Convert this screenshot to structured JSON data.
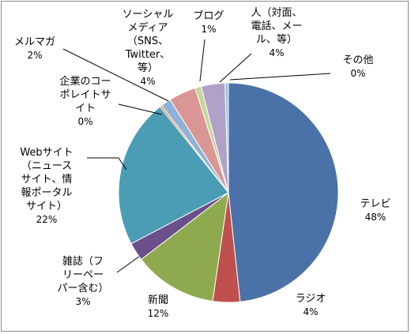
{
  "chart_data": {
    "type": "pie",
    "start_angle_deg": 0,
    "direction": "clockwise",
    "slices": [
      {
        "label": "テレビ",
        "pct_label": "48%",
        "value": 48.3,
        "color": "#4a72a8"
      },
      {
        "label": "ラジオ",
        "pct_label": "4%",
        "value": 4.0,
        "color": "#c0504d"
      },
      {
        "label": "新聞",
        "pct_label": "12%",
        "value": 12.3,
        "color": "#8faa4e"
      },
      {
        "label": "雑誌（フ\nリーペー\nパー含む）",
        "pct_label": "3%",
        "value": 2.7,
        "color": "#6b4f8a"
      },
      {
        "label": "Webサイト\n（ニュース\nサイト、情\n報ポータル\nサイト）",
        "pct_label": "22%",
        "value": 22.0,
        "color": "#4a9db4"
      },
      {
        "label": "企業のコー\nポレイトサ\nイト",
        "pct_label": "0%",
        "value": 0.3,
        "color": "#e8883a"
      },
      {
        "label": "メルマガ",
        "pct_label": "2%",
        "value": 1.5,
        "color": "#8fb1d8"
      },
      {
        "label": "ソーシャル\nメディア\n（SNS、\nTwitter、\n等）",
        "pct_label": "4%",
        "value": 4.0,
        "color": "#d99694"
      },
      {
        "label": "ブログ",
        "pct_label": "1%",
        "value": 0.9,
        "color": "#c6d69b"
      },
      {
        "label": "人（対面、\n電話、メー\nル、等）",
        "pct_label": "4%",
        "value": 3.5,
        "color": "#b1a0c7"
      },
      {
        "label": "その他",
        "pct_label": "0%",
        "value": 0.5,
        "color": "#92cddc"
      }
    ]
  }
}
